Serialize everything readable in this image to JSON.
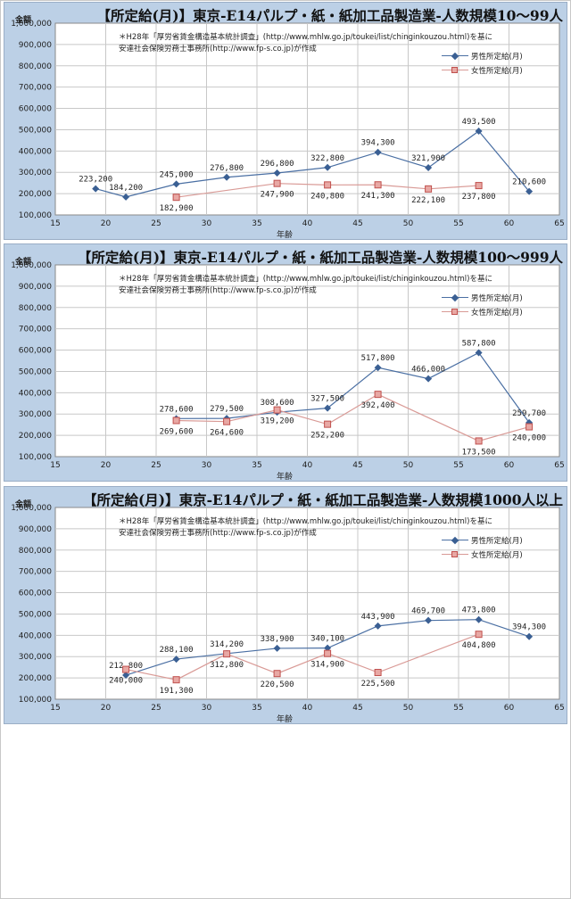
{
  "legend": {
    "male": "男性所定給(月)",
    "female": "女性所定給(月)"
  },
  "colors": {
    "male": "#3a5f93",
    "female": "#c0504d",
    "panel_bg": "#bcd0e6",
    "plot_bg": "#ffffff"
  },
  "chart_data": [
    {
      "type": "line",
      "title": "【所定給(月)】東京-E14パルプ・紙・紙加工品製造業-人数規模10～99人",
      "ylabel": "金額",
      "xlabel": "年齢",
      "note_line1": "＊H28年「厚労省賃金構造基本統計調査」(http://www.mhlw.go.jp/toukei/list/chinginkouzou.html)を基に",
      "note_line2": "安達社会保険労務士事務所(http://www.fp-s.co.jp)が作成",
      "xlim": [
        15,
        65
      ],
      "ylim": [
        100000,
        1000000
      ],
      "xticks": [
        "15",
        "20",
        "25",
        "30",
        "35",
        "40",
        "45",
        "50",
        "55",
        "60",
        "65"
      ],
      "yticks": [
        "100,000",
        "200,000",
        "300,000",
        "400,000",
        "500,000",
        "600,000",
        "700,000",
        "800,000",
        "900,000",
        "1,000,000"
      ],
      "grid": true,
      "series": [
        {
          "name": "男性所定給(月)",
          "points": [
            [
              19,
              223200
            ],
            [
              22,
              184200
            ],
            [
              27,
              245000
            ],
            [
              32,
              276800
            ],
            [
              37,
              296800
            ],
            [
              42,
              322800
            ],
            [
              47,
              394300
            ],
            [
              52,
              321900
            ],
            [
              57,
              493500
            ],
            [
              62,
              210600
            ]
          ],
          "labels": [
            "223,200",
            "184,200",
            "245,000",
            "276,800",
            "296,800",
            "322,800",
            "394,300",
            "321,900",
            "493,500",
            "210,600"
          ]
        },
        {
          "name": "女性所定給(月)",
          "points": [
            [
              27,
              182900
            ],
            [
              37,
              247900
            ],
            [
              42,
              240800
            ],
            [
              47,
              241300
            ],
            [
              52,
              222100
            ],
            [
              57,
              237800
            ]
          ],
          "labels": [
            "182,900",
            "247,900",
            "240,800",
            "241,300",
            "222,100",
            "237,800"
          ]
        }
      ]
    },
    {
      "type": "line",
      "title": "【所定給(月)】東京-E14パルプ・紙・紙加工品製造業-人数規模100～999人",
      "ylabel": "金額",
      "xlabel": "年齢",
      "note_line1": "＊H28年「厚労省賃金構造基本統計調査」(http://www.mhlw.go.jp/toukei/list/chinginkouzou.html)を基に",
      "note_line2": "安達社会保険労務士事務所(http://www.fp-s.co.jp)が作成",
      "xlim": [
        15,
        65
      ],
      "ylim": [
        100000,
        1000000
      ],
      "xticks": [
        "15",
        "20",
        "25",
        "30",
        "35",
        "40",
        "45",
        "50",
        "55",
        "60",
        "65"
      ],
      "yticks": [
        "100,000",
        "200,000",
        "300,000",
        "400,000",
        "500,000",
        "600,000",
        "700,000",
        "800,000",
        "900,000",
        "1,000,000"
      ],
      "grid": true,
      "series": [
        {
          "name": "男性所定給(月)",
          "points": [
            [
              27,
              278600
            ],
            [
              32,
              279500
            ],
            [
              37,
              308600
            ],
            [
              42,
              327500
            ],
            [
              47,
              517800
            ],
            [
              52,
              466000
            ],
            [
              57,
              587800
            ],
            [
              62,
              259700
            ]
          ],
          "labels": [
            "278,600",
            "279,500",
            "308,600",
            "327,500",
            "517,800",
            "466,000",
            "587,800",
            "259,700"
          ]
        },
        {
          "name": "女性所定給(月)",
          "points": [
            [
              27,
              269600
            ],
            [
              32,
              264600
            ],
            [
              37,
              319200
            ],
            [
              42,
              252200
            ],
            [
              47,
              392400
            ],
            [
              57,
              173500
            ],
            [
              62,
              240000
            ]
          ],
          "labels": [
            "269,600",
            "264,600",
            "319,200",
            "252,200",
            "392,400",
            "173,500",
            "240,000"
          ]
        }
      ]
    },
    {
      "type": "line",
      "title": "【所定給(月)】東京-E14パルプ・紙・紙加工品製造業-人数規模1000人以上",
      "ylabel": "金額",
      "xlabel": "年齢",
      "note_line1": "＊H28年「厚労省賃金構造基本統計調査」(http://www.mhlw.go.jp/toukei/list/chinginkouzou.html)を基に",
      "note_line2": "安達社会保険労務士事務所(http://www.fp-s.co.jp)が作成",
      "xlim": [
        15,
        65
      ],
      "ylim": [
        100000,
        1000000
      ],
      "xticks": [
        "15",
        "20",
        "25",
        "30",
        "35",
        "40",
        "45",
        "50",
        "55",
        "60",
        "65"
      ],
      "yticks": [
        "100,000",
        "200,000",
        "300,000",
        "400,000",
        "500,000",
        "600,000",
        "700,000",
        "800,000",
        "900,000",
        "1,000,000"
      ],
      "grid": true,
      "series": [
        {
          "name": "男性所定給(月)",
          "points": [
            [
              22,
              212800
            ],
            [
              27,
              288100
            ],
            [
              32,
              314200
            ],
            [
              37,
              338900
            ],
            [
              42,
              340100
            ],
            [
              47,
              443900
            ],
            [
              52,
              469700
            ],
            [
              57,
              473800
            ],
            [
              62,
              394300
            ]
          ],
          "labels": [
            "212,800",
            "288,100",
            "314,200",
            "338,900",
            "340,100",
            "443,900",
            "469,700",
            "473,800",
            "394,300"
          ]
        },
        {
          "name": "女性所定給(月)",
          "points": [
            [
              22,
              240000
            ],
            [
              27,
              191300
            ],
            [
              32,
              312800
            ],
            [
              37,
              220500
            ],
            [
              42,
              314900
            ],
            [
              47,
              225500
            ],
            [
              57,
              404800
            ]
          ],
          "labels": [
            "240,000",
            "191,300",
            "312,800",
            "220,500",
            "314,900",
            "225,500",
            "404,800"
          ]
        }
      ]
    }
  ]
}
